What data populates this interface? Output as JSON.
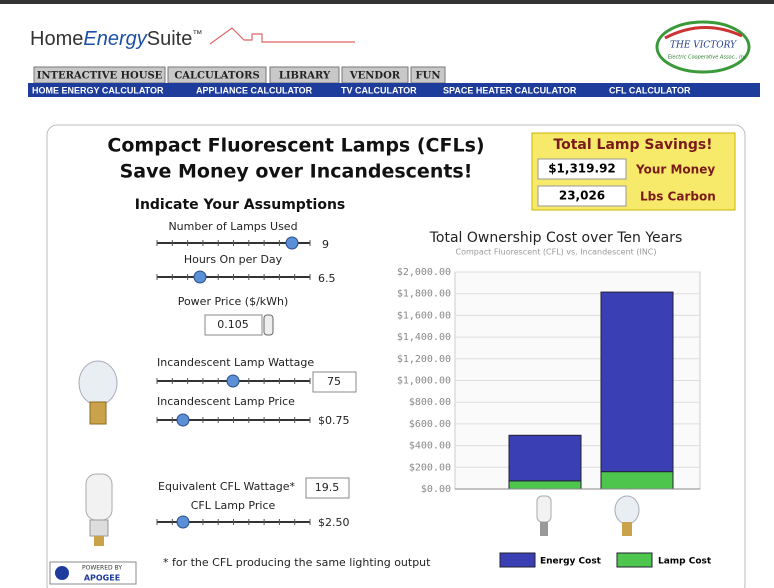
{
  "header": {
    "logo": [
      "Home",
      "Energy",
      "Suite",
      "™"
    ],
    "partner": [
      "THE VICTORY",
      "Electric Cooperative Assoc., Inc."
    ],
    "tabs": [
      "INTERACTIVE HOUSE",
      "CALCULATORS",
      "LIBRARY",
      "VENDOR",
      "FUN"
    ],
    "nav": [
      "HOME ENERGY CALCULATOR",
      "APPLIANCE CALCULATOR",
      "TV CALCULATOR",
      "SPACE HEATER CALCULATOR",
      "CFL CALCULATOR"
    ]
  },
  "panel": {
    "title": [
      "Compact Fluorescent Lamps (CFLs)",
      "Save Money over Incandescents!"
    ],
    "savings": {
      "title": "Total Lamp Savings!",
      "money": "$1,319.92",
      "money_label": "Your Money",
      "carbon": "23,026",
      "carbon_label": "Lbs Carbon"
    },
    "assumptions_title": "Indicate Your Assumptions",
    "assumptions": [
      {
        "label": "Number of Lamps Used",
        "value": "9"
      },
      {
        "label": "Hours On per Day",
        "value": "6.5"
      },
      {
        "label": "Power Price ($/kWh)",
        "value": "0.105"
      },
      {
        "label": "Incandescent Lamp Wattage",
        "value": "75"
      },
      {
        "label": "Incandescent Lamp Price",
        "value": "$0.75"
      },
      {
        "label": "Equivalent CFL Wattage*",
        "value": "19.5"
      },
      {
        "label": "CFL Lamp Price",
        "value": "$2.50"
      }
    ],
    "footnote": "* for the CFL producing the same lighting output",
    "powered_by": [
      "POWERED BY",
      "APOGEE"
    ]
  },
  "chart_data": {
    "type": "bar",
    "stacked": true,
    "title": "Total Ownership Cost over Ten Years",
    "subtitle": "Compact Fluorescent (CFL) vs. Incandescent (INC)",
    "categories": [
      null,
      null
    ],
    "series": [
      {
        "name": "Energy Cost",
        "color": "#3a3fb4",
        "values": [
          420,
          1655
        ]
      },
      {
        "name": "Lamp Cost",
        "color": "#4ec64e",
        "values": [
          75,
          160
        ]
      }
    ],
    "ylim": [
      0,
      2000
    ],
    "yticks": [
      {
        "value": 0,
        "label": "$0.00"
      },
      {
        "value": 200,
        "label": "$200.00"
      },
      {
        "value": 400,
        "label": "$400.00"
      },
      {
        "value": 600,
        "label": "$600.00"
      },
      {
        "value": 800,
        "label": "$800.00"
      },
      {
        "value": 1000,
        "label": "$1,000.00"
      },
      {
        "value": 1200,
        "label": "$1,200.00"
      },
      {
        "value": 1400,
        "label": "$1,400.00"
      },
      {
        "value": 1600,
        "label": "$1,600.00"
      },
      {
        "value": 1800,
        "label": "$1,800.00"
      },
      {
        "value": 2000,
        "label": "$2,000.00"
      }
    ],
    "grid": true
  }
}
